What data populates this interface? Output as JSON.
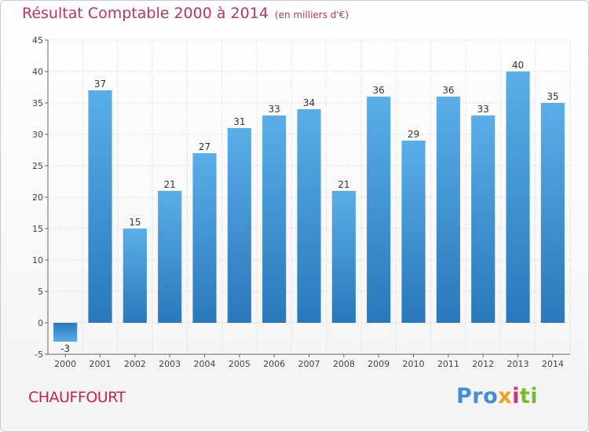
{
  "header": {
    "title": "Résultat Comptable 2000 à 2014",
    "unit_note": "(en milliers d'€)"
  },
  "footer": {
    "commune": "CHAUFFOURT",
    "logo_text": "Proxiti"
  },
  "colors": {
    "title": "#b7336a",
    "commune": "#c8244f",
    "bar_top": "#5aaee8",
    "bar_bottom": "#2a78bb",
    "grid": "#d0d0d0"
  },
  "chart_data": {
    "type": "bar",
    "title": "Résultat Comptable 2000 à 2014",
    "subtitle": "(en milliers d'€)",
    "xlabel": "",
    "ylabel": "",
    "categories": [
      "2000",
      "2001",
      "2002",
      "2003",
      "2004",
      "2005",
      "2006",
      "2007",
      "2008",
      "2009",
      "2010",
      "2011",
      "2012",
      "2013",
      "2014"
    ],
    "values": [
      -3,
      37,
      15,
      21,
      27,
      31,
      33,
      34,
      21,
      36,
      29,
      36,
      33,
      40,
      35
    ],
    "ylim": [
      -5,
      45
    ],
    "yticks": [
      -5,
      0,
      5,
      10,
      15,
      20,
      25,
      30,
      35,
      40,
      45
    ],
    "grid": true,
    "legend": "none"
  }
}
